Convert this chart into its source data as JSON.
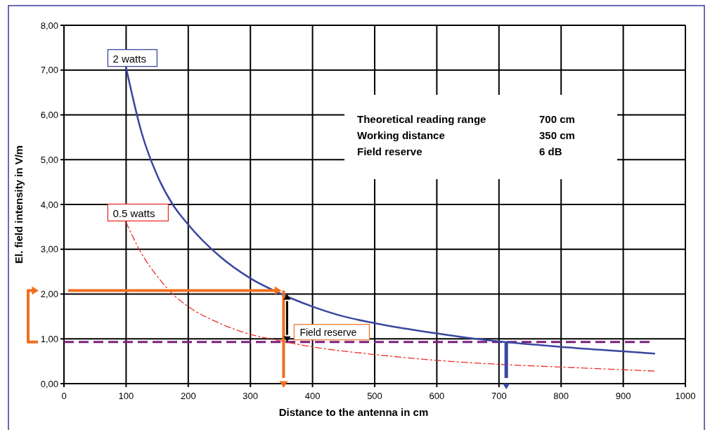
{
  "chart_data": {
    "type": "line",
    "xlabel": "Distance to the antenna in cm",
    "ylabel": "El. field intensity in V/m",
    "xlim": [
      0,
      1000
    ],
    "xticks": [
      0,
      100,
      200,
      300,
      400,
      500,
      600,
      700,
      800,
      900,
      1000
    ],
    "ylim": [
      0,
      8
    ],
    "yticks": [
      {
        "value": 0,
        "label": "0,00"
      },
      {
        "value": 1,
        "label": "1,00"
      },
      {
        "value": 2,
        "label": "2,00"
      },
      {
        "value": 3,
        "label": "3,00"
      },
      {
        "value": 4,
        "label": "4,00"
      },
      {
        "value": 5,
        "label": "5,00"
      },
      {
        "value": 6,
        "label": "6,00"
      },
      {
        "value": 7,
        "label": "7,00"
      },
      {
        "value": 8,
        "label": "8,00"
      }
    ],
    "grid": true,
    "series": [
      {
        "name": "2 watts",
        "color": "#3a47a0",
        "line_style": "solid",
        "x": [
          100,
          125,
          150,
          175,
          200,
          250,
          300,
          350,
          400,
          450,
          500,
          600,
          700,
          750,
          800,
          900,
          950
        ],
        "values": [
          7.05,
          5.6,
          4.65,
          4.0,
          3.55,
          2.85,
          2.35,
          2.0,
          1.72,
          1.5,
          1.35,
          1.12,
          0.94,
          0.88,
          0.82,
          0.72,
          0.67
        ]
      },
      {
        "name": "0.5 watts",
        "color": "#e8302a",
        "line_style": "dashdot",
        "x": [
          100,
          125,
          150,
          175,
          200,
          250,
          300,
          350,
          400,
          500,
          600,
          700,
          800,
          900,
          950
        ],
        "values": [
          3.6,
          2.9,
          2.4,
          2.0,
          1.72,
          1.35,
          1.1,
          0.95,
          0.82,
          0.65,
          0.52,
          0.43,
          0.37,
          0.31,
          0.28
        ]
      }
    ],
    "ref_lines": [
      {
        "axis": "y",
        "value": 0.93,
        "color": "#7b1f7f",
        "line_style": "dashed"
      }
    ],
    "annotations": [
      "Field reserve",
      "Theoretical reading range",
      "700 cm",
      "Working distance",
      "350 cm",
      "Field reserve",
      "6 dB"
    ]
  }
}
